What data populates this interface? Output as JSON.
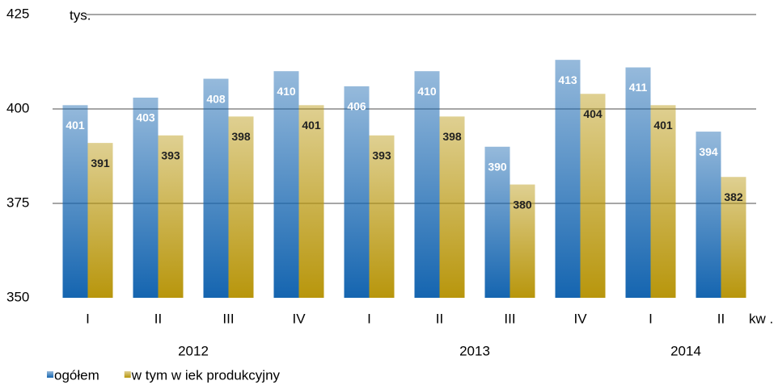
{
  "chart_data": {
    "type": "bar",
    "y_unit_label": "tys.",
    "x_unit_label": "kw .",
    "categories": [
      "I",
      "II",
      "III",
      "IV",
      "I",
      "II",
      "III",
      "IV",
      "I",
      "II"
    ],
    "years": [
      "2012",
      "2013",
      "2014"
    ],
    "series": [
      {
        "name": "ogółem",
        "color": "#1565b0",
        "values": [
          401,
          403,
          408,
          410,
          406,
          410,
          390,
          413,
          411,
          394
        ]
      },
      {
        "name": "w tym w iek produkcyjny",
        "color": "#b8960c",
        "values": [
          391,
          393,
          398,
          401,
          393,
          398,
          380,
          404,
          401,
          382
        ]
      }
    ],
    "ylim": [
      350,
      425
    ],
    "yticks": [
      350,
      375,
      400,
      425
    ],
    "grid": true
  }
}
